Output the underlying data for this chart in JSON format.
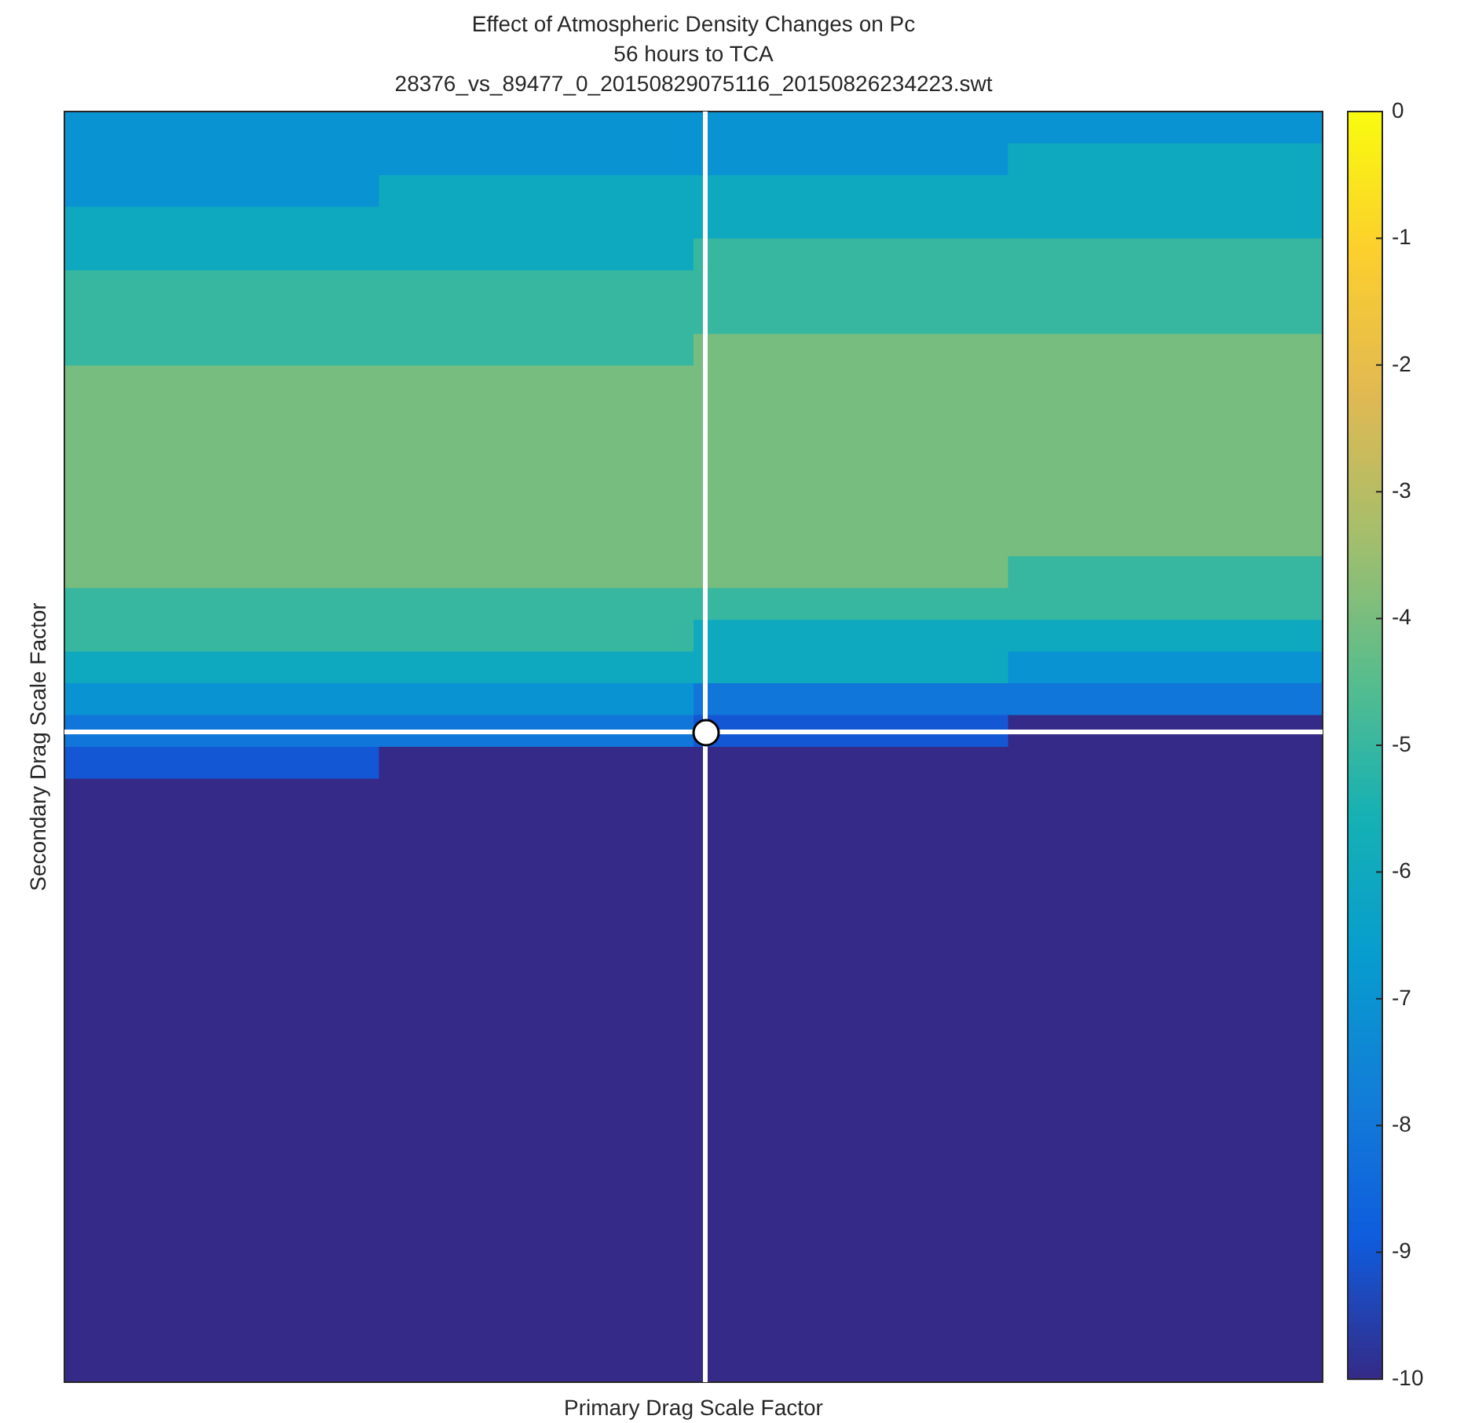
{
  "chart_data": {
    "type": "heatmap",
    "title": "Effect of Atmospheric Density Changes on Pc",
    "subtitle": "56 hours to TCA",
    "annotations": [
      "28376_vs_89477_0_20150829075116_20150826234223.swt"
    ],
    "xlabel": "Primary Drag Scale Factor",
    "ylabel": "Secondary Drag Scale Factor",
    "categories": [
      null,
      null,
      null,
      null
    ],
    "y_categories": [
      null,
      null,
      null,
      null,
      null,
      null,
      null,
      null,
      null,
      null,
      null,
      null,
      null,
      null,
      null,
      null,
      null,
      null,
      null,
      null,
      null,
      null,
      null,
      null,
      null,
      null,
      null,
      null,
      null,
      null,
      null,
      null,
      null,
      null,
      null,
      null,
      null,
      null,
      null,
      null
    ],
    "cells": [
      [
        -7,
        -7,
        -7,
        -7
      ],
      [
        -7,
        -7,
        -7,
        -6
      ],
      [
        -7,
        -6,
        -6,
        -6
      ],
      [
        -6,
        -6,
        -6,
        -6
      ],
      [
        -6,
        -6,
        -5,
        -5
      ],
      [
        -5,
        -5,
        -5,
        -5
      ],
      [
        -5,
        -5,
        -5,
        -5
      ],
      [
        -5,
        -5,
        -4,
        -4
      ],
      [
        -4,
        -4,
        -4,
        -4
      ],
      [
        -4,
        -4,
        -4,
        -4
      ],
      [
        -4,
        -4,
        -4,
        -4
      ],
      [
        -4,
        -4,
        -4,
        -4
      ],
      [
        -4,
        -4,
        -4,
        -4
      ],
      [
        -4,
        -4,
        -4,
        -4
      ],
      [
        -4,
        -4,
        -4,
        -5
      ],
      [
        -5,
        -5,
        -5,
        -5
      ],
      [
        -5,
        -5,
        -6,
        -6
      ],
      [
        -6,
        -6,
        -6,
        -7
      ],
      [
        -7,
        -7,
        -8,
        -8
      ],
      [
        -8,
        -8,
        -9,
        -10
      ],
      [
        -9,
        -10,
        -10,
        -10
      ],
      [
        -10,
        -10,
        -10,
        -10
      ],
      [
        -10,
        -10,
        -10,
        -10
      ],
      [
        -10,
        -10,
        -10,
        -10
      ],
      [
        -10,
        -10,
        -10,
        -10
      ],
      [
        -10,
        -10,
        -10,
        -10
      ],
      [
        -10,
        -10,
        -10,
        -10
      ],
      [
        -10,
        -10,
        -10,
        -10
      ],
      [
        -10,
        -10,
        -10,
        -10
      ],
      [
        -10,
        -10,
        -10,
        -10
      ],
      [
        -10,
        -10,
        -10,
        -10
      ],
      [
        -10,
        -10,
        -10,
        -10
      ],
      [
        -10,
        -10,
        -10,
        -10
      ],
      [
        -10,
        -10,
        -10,
        -10
      ],
      [
        -10,
        -10,
        -10,
        -10
      ],
      [
        -10,
        -10,
        -10,
        -10
      ],
      [
        -10,
        -10,
        -10,
        -10
      ],
      [
        -10,
        -10,
        -10,
        -10
      ],
      [
        -10,
        -10,
        -10,
        -10
      ],
      [
        -10,
        -10,
        -10,
        -10
      ]
    ],
    "clim": [
      -10,
      0
    ],
    "cticks": [
      0,
      -1,
      -2,
      -3,
      -4,
      -5,
      -6,
      -7,
      -8,
      -9,
      -10
    ]
  }
}
